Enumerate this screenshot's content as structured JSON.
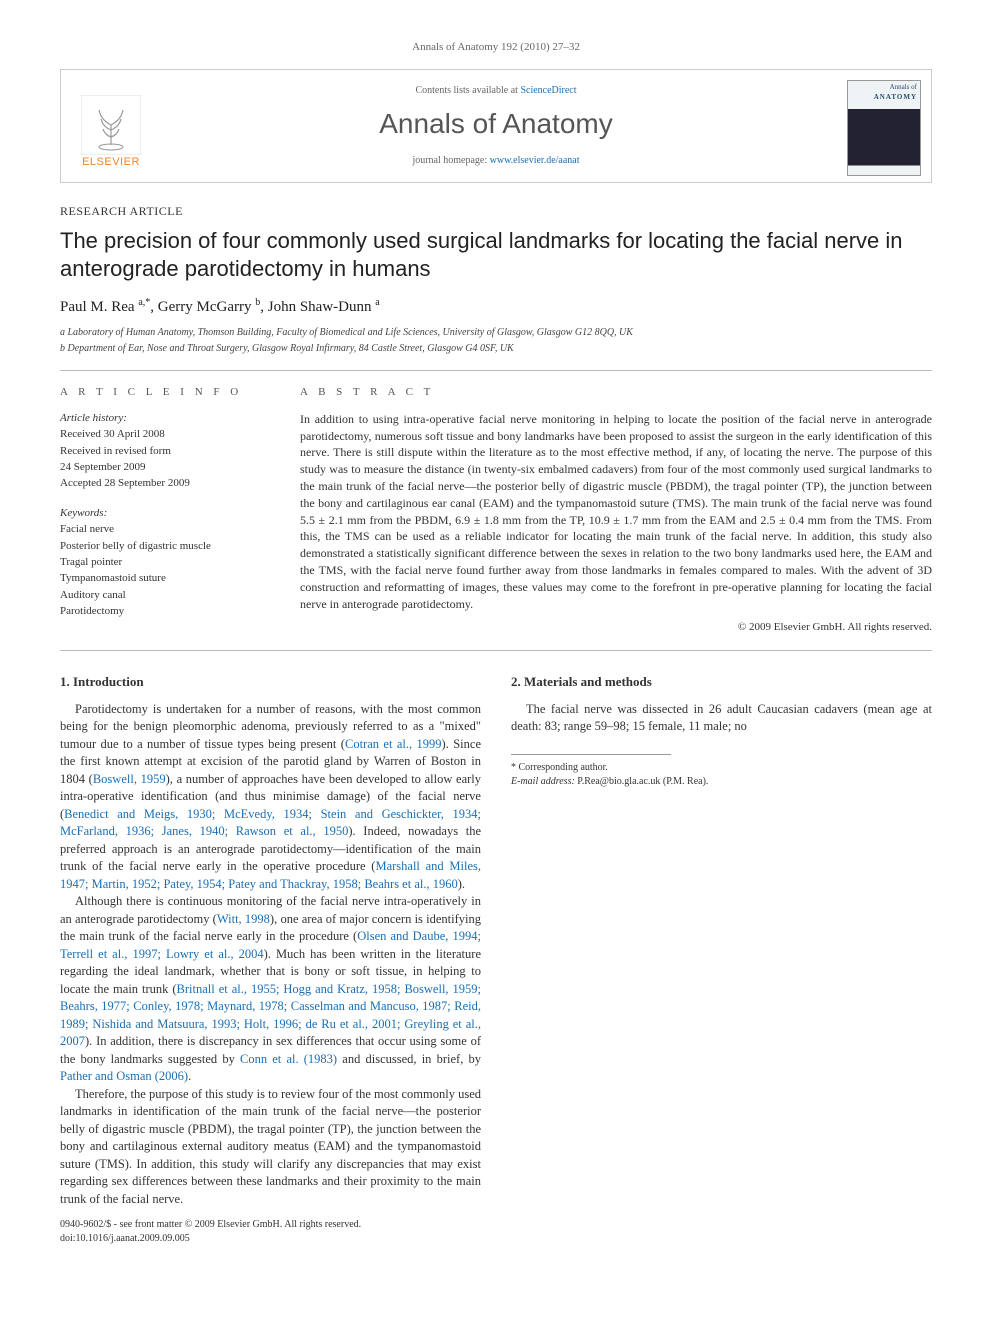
{
  "runhead": "Annals of Anatomy 192 (2010) 27–32",
  "header": {
    "contents_prefix": "Contents lists available at ",
    "contents_link": "ScienceDirect",
    "journal": "Annals of Anatomy",
    "homepage_prefix": "journal homepage: ",
    "homepage_link": "www.elsevier.de/aanat",
    "publisher_name": "ELSEVIER",
    "cover_small": "Annals of",
    "cover_big": "ANATOMY"
  },
  "article_type": "RESEARCH ARTICLE",
  "title": "The precision of four commonly used surgical landmarks for locating the facial nerve in anterograde parotidectomy in humans",
  "authors_html": "Paul M. Rea <sup>a,*</sup>, Gerry McGarry <sup>b</sup>, John Shaw-Dunn <sup>a</sup>",
  "affiliations": [
    "a Laboratory of Human Anatomy, Thomson Building, Faculty of Biomedical and Life Sciences, University of Glasgow, Glasgow G12 8QQ, UK",
    "b Department of Ear, Nose and Throat Surgery, Glasgow Royal Infirmary, 84 Castle Street, Glasgow G4 0SF, UK"
  ],
  "meta": {
    "info_h": "A R T I C L E  I N F O",
    "abs_h": "A B S T R A C T",
    "history_h": "Article history:",
    "history": [
      "Received 30 April 2008",
      "Received in revised form",
      "24 September 2009",
      "Accepted 28 September 2009"
    ],
    "keywords_h": "Keywords:",
    "keywords": [
      "Facial nerve",
      "Posterior belly of digastric muscle",
      "Tragal pointer",
      "Tympanomastoid suture",
      "Auditory canal",
      "Parotidectomy"
    ]
  },
  "abstract": "In addition to using intra-operative facial nerve monitoring in helping to locate the position of the facial nerve in anterograde parotidectomy, numerous soft tissue and bony landmarks have been proposed to assist the surgeon in the early identification of this nerve. There is still dispute within the literature as to the most effective method, if any, of locating the nerve. The purpose of this study was to measure the distance (in twenty-six embalmed cadavers) from four of the most commonly used surgical landmarks to the main trunk of the facial nerve—the posterior belly of digastric muscle (PBDM), the tragal pointer (TP), the junction between the bony and cartilaginous ear canal (EAM) and the tympanomastoid suture (TMS). The main trunk of the facial nerve was found 5.5 ± 2.1 mm from the PBDM, 6.9 ± 1.8 mm from the TP, 10.9 ± 1.7 mm from the EAM and 2.5 ± 0.4 mm from the TMS. From this, the TMS can be used as a reliable indicator for locating the main trunk of the facial nerve. In addition, this study also demonstrated a statistically significant difference between the sexes in relation to the two bony landmarks used here, the EAM and the TMS, with the facial nerve found further away from those landmarks in females compared to males. With the advent of 3D construction and reformatting of images, these values may come to the forefront in pre-operative planning for locating the facial nerve in anterograde parotidectomy.",
  "copyright": "© 2009 Elsevier GmbH. All rights reserved.",
  "sections": {
    "s1_h": "1.  Introduction",
    "s1_p1_a": "Parotidectomy is undertaken for a number of reasons, with the most common being for the benign pleomorphic adenoma, previously referred to as a \"mixed\" tumour due to a number of tissue types being present (",
    "s1_p1_c1": "Cotran et al., 1999",
    "s1_p1_b": "). Since the first known attempt at excision of the parotid gland by Warren of Boston in 1804 (",
    "s1_p1_c2": "Boswell, 1959",
    "s1_p1_c": "), a number of approaches have been developed to allow early intra-operative identification (and thus minimise damage) of the facial nerve (",
    "s1_p1_c3": "Benedict and Meigs, 1930; McEvedy, 1934; Stein and Geschickter, 1934; McFarland, 1936; Janes, 1940; Rawson et al., 1950",
    "s1_p1_d": "). Indeed, nowadays the preferred approach is an anterograde parotidectomy—identification of the main trunk of the facial nerve early in the operative procedure (",
    "s1_p1_c4": "Marshall and Miles, 1947; Martin, 1952; Patey, 1954; Patey and Thackray, 1958; Beahrs et al., 1960",
    "s1_p1_e": ").",
    "s1_p2_a": "Although there is continuous monitoring of the facial nerve intra-operatively in an anterograde parotidectomy (",
    "s1_p2_c1": "Witt, 1998",
    "s1_p2_b": "), one area of major concern is identifying the main trunk of the facial nerve early in the procedure (",
    "s1_p2_c2": "Olsen and Daube, 1994; Terrell et al., 1997; Lowry et al., 2004",
    "s1_p2_c": "). Much has been written in the literature regarding the ideal landmark, whether that is bony or soft tissue, in helping to locate the main trunk (",
    "s1_p2_c3": "Britnall et al., 1955; Hogg and Kratz, 1958; Boswell, 1959; Beahrs, 1977; Conley, 1978; Maynard, 1978; Casselman and Mancuso, 1987; Reid, 1989; Nishida and Matsuura, 1993; Holt, 1996; de Ru et al., 2001; Greyling et al., 2007",
    "s1_p2_d": "). In addition, there is discrepancy in sex differences that occur using some of the bony landmarks suggested by ",
    "s1_p2_c4": "Conn et al. (1983)",
    "s1_p2_e": " and discussed, in brief, by ",
    "s1_p2_c5": "Pather and Osman (2006)",
    "s1_p2_f": ".",
    "s1_p3": "Therefore, the purpose of this study is to review four of the most commonly used landmarks in identification of the main trunk of the facial nerve—the posterior belly of digastric muscle (PBDM), the tragal pointer (TP), the junction between the bony and cartilaginous external auditory meatus (EAM) and the tympanomastoid suture (TMS). In addition, this study will clarify any discrepancies that may exist regarding sex differences between these landmarks and their proximity to the main trunk of the facial nerve.",
    "s2_h": "2.  Materials and methods",
    "s2_p1": "The facial nerve was dissected in 26 adult Caucasian cadavers (mean age at death: 83; range 59–98; 15 female, 11 male; no"
  },
  "footer": {
    "corr_label": "* Corresponding author.",
    "email_label": "E-mail address:",
    "email": "P.Rea@bio.gla.ac.uk (P.M. Rea).",
    "front1": "0940-9602/$ - see front matter © 2009 Elsevier GmbH. All rights reserved.",
    "front2": "doi:10.1016/j.aanat.2009.09.005"
  }
}
